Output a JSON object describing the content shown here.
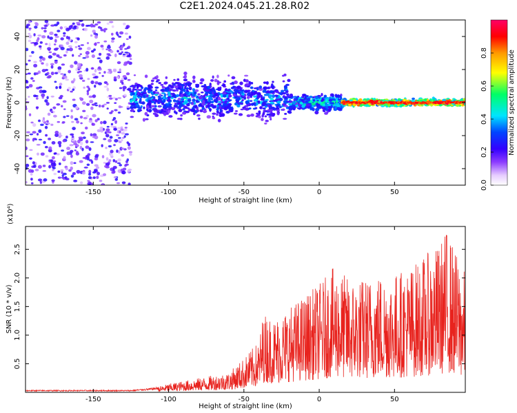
{
  "page_title": "C2E1.2024.045.21.28.R02",
  "colors": {
    "snr_line": "#e8231e",
    "axis": "#000000",
    "colormap": [
      "#ffffff",
      "#e6ccff",
      "#9b5cff",
      "#6a00ff",
      "#0000ff",
      "#00e5ff",
      "#00ff66",
      "#ffff00",
      "#ff9900",
      "#ff0000",
      "#ff0066"
    ]
  },
  "chart_data": [
    {
      "type": "heatmap",
      "title": "",
      "xlabel": "Height of straight line (km)",
      "ylabel": "Frequency (Hz)",
      "xlim": [
        -195,
        97
      ],
      "ylim": [
        -50,
        50
      ],
      "xticks": [
        "-150",
        "-100",
        "-50",
        "0",
        "50"
      ],
      "yticks": [
        "-40",
        "-20",
        "0",
        "20",
        "40"
      ],
      "colorbar": {
        "label": "Normalized spectral amplitude",
        "range": [
          0,
          1
        ],
        "ticks": [
          "0.0",
          "0.2",
          "0.4",
          "0.6",
          "0.8"
        ]
      },
      "regions": [
        {
          "x": [
            -195,
            -125
          ],
          "description_level": "broadband scattered low amplitude",
          "freq_range": [
            -50,
            50
          ],
          "amplitude": 0.15
        },
        {
          "x": [
            -125,
            -20
          ],
          "freq_range": [
            -10,
            15
          ],
          "amplitude": 0.35
        },
        {
          "x": [
            -20,
            15
          ],
          "freq_range": [
            -5,
            5
          ],
          "amplitude": 0.45
        },
        {
          "x": [
            15,
            97
          ],
          "freq_range": [
            -2,
            2
          ],
          "amplitude": 0.9
        }
      ]
    },
    {
      "type": "line",
      "title": "",
      "xlabel": "Height of straight line (km)",
      "ylabel": "SNR (10 * v/v)",
      "scale_label": "(x10⁴)",
      "xlim": [
        -195,
        97
      ],
      "ylim": [
        0,
        2.9
      ],
      "xticks": [
        "-150",
        "-100",
        "-50",
        "0",
        "50"
      ],
      "yticks": [
        "0.5",
        "1.0",
        "1.5",
        "2.0",
        "2.5"
      ],
      "envelope": {
        "x": [
          -195,
          -125,
          -110,
          -100,
          -80,
          -60,
          -50,
          -40,
          -37,
          -30,
          -20,
          -10,
          0,
          10,
          20,
          30,
          40,
          50,
          60,
          70,
          80,
          85,
          90,
          97
        ],
        "y": [
          0.04,
          0.04,
          0.08,
          0.15,
          0.25,
          0.35,
          0.6,
          0.9,
          1.4,
          1.3,
          1.5,
          1.7,
          1.9,
          2.2,
          2.0,
          2.0,
          2.1,
          2.1,
          2.2,
          2.4,
          2.6,
          2.9,
          2.5,
          2.1
        ]
      }
    }
  ]
}
